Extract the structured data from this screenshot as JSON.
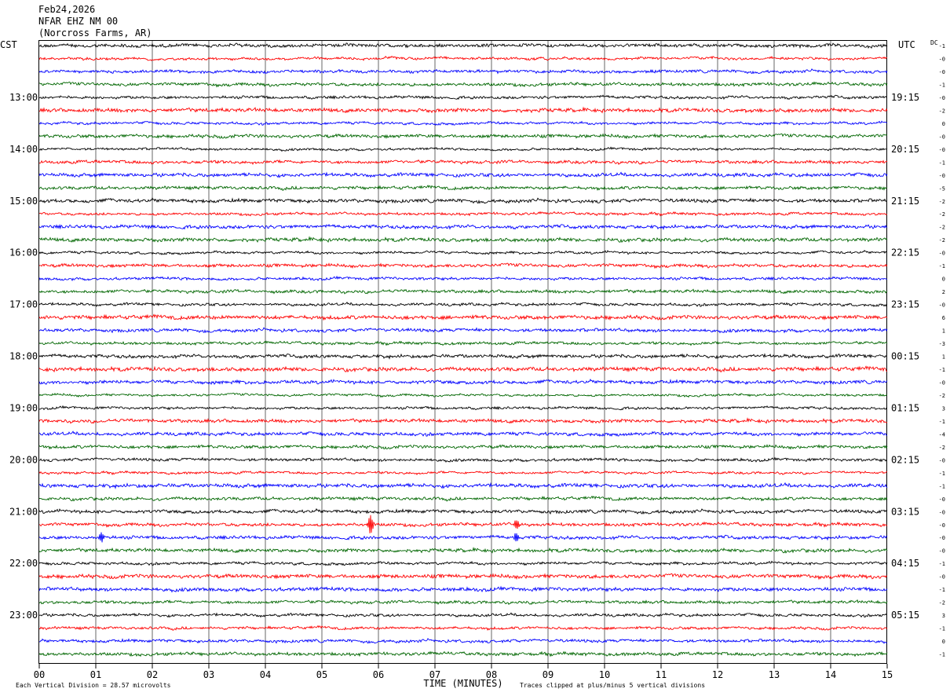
{
  "header": {
    "date": "Feb24,2026",
    "station": "NFAR EHZ NM 00",
    "location": "(Norcross Farms, AR)"
  },
  "chart_data": {
    "type": "line",
    "title": "",
    "xlabel": "TIME (MINUTES)",
    "left_axis_label": "CST",
    "right_axis_label": "UTC",
    "dc_label": "DC",
    "xlim": [
      0,
      15
    ],
    "x_ticks": [
      "00",
      "01",
      "02",
      "03",
      "04",
      "05",
      "06",
      "07",
      "08",
      "09",
      "10",
      "11",
      "12",
      "13",
      "14",
      "15"
    ],
    "left_hour_labels": [
      "13:00",
      "14:00",
      "15:00",
      "16:00",
      "17:00",
      "18:00",
      "19:00",
      "20:00",
      "21:00",
      "22:00",
      "23:00"
    ],
    "right_hour_labels": [
      "19:15",
      "20:15",
      "21:15",
      "22:15",
      "23:15",
      "00:15",
      "01:15",
      "02:15",
      "03:15",
      "04:15",
      "05:15"
    ],
    "traces_per_hour": 4,
    "trace_count": 48,
    "trace_colors": [
      "#000000",
      "#ff0000",
      "#0000ff",
      "#006600"
    ],
    "dc_offsets": [
      "-1",
      "-0",
      "-0",
      "-1",
      "-0",
      "-2",
      "0",
      "-0",
      "-0",
      "-1",
      "-0",
      "-5",
      "-2",
      "-2",
      "-2",
      "-2",
      "-0",
      "-1",
      "0",
      "2",
      "-0",
      "6",
      "1",
      "-3",
      "1",
      "-1",
      "-0",
      "-2",
      "3",
      "-1",
      "-4",
      "-2",
      "-0",
      "-1",
      "-1",
      "-0",
      "-0",
      "-0",
      "-0",
      "-0",
      "-1",
      "-0",
      "-1",
      "-2",
      "3",
      "-1",
      "0",
      "-1"
    ],
    "notable_events": [
      {
        "trace": 37,
        "minute": 5.86,
        "desc": "large spike"
      },
      {
        "trace": 37,
        "minute": 8.44,
        "desc": "spike"
      },
      {
        "trace": 38,
        "minute": 1.1,
        "desc": "spike"
      },
      {
        "trace": 38,
        "minute": 8.45,
        "desc": "spike"
      }
    ],
    "footer_left": "Each Vertical Division =   28.57 microvolts",
    "footer_right": "Traces clipped at plus/minus 5 vertical divisions"
  }
}
